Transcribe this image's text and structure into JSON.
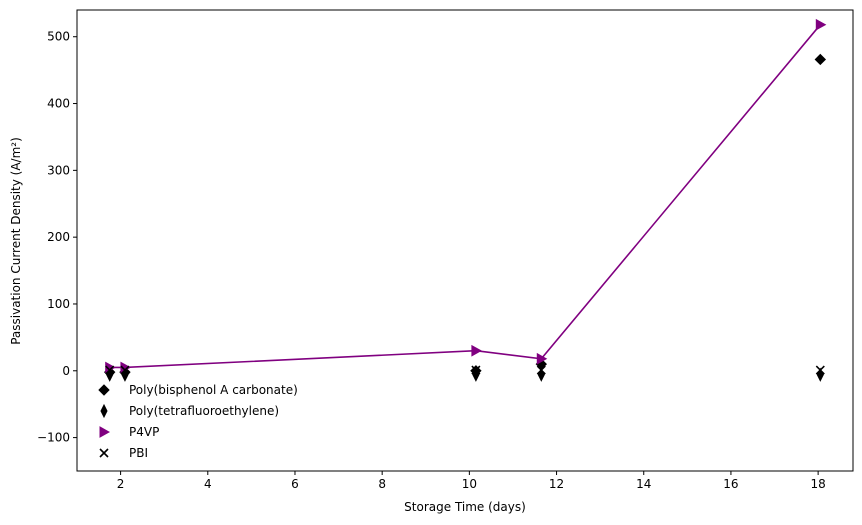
{
  "chart_data": {
    "type": "scatter",
    "xlabel": "Storage Time (days)",
    "ylabel": "Passivation Current Density (A/m²)",
    "xlim": [
      1.0,
      18.8
    ],
    "ylim": [
      -150,
      540
    ],
    "xticks": [
      2,
      4,
      6,
      8,
      10,
      12,
      14,
      16,
      18
    ],
    "yticks": [
      -100,
      0,
      100,
      200,
      300,
      400,
      500
    ],
    "ytick_labels": [
      "−100",
      "0",
      "100",
      "200",
      "300",
      "400",
      "500"
    ],
    "grid": false,
    "legend_position": "lower-left",
    "series": [
      {
        "name": "Poly(bisphenol A carbonate)",
        "marker": "diamond",
        "color": "#000000",
        "line": false,
        "points": [
          [
            1.75,
            -2
          ],
          [
            2.1,
            -2
          ],
          [
            10.15,
            0
          ],
          [
            11.65,
            10
          ],
          [
            18.05,
            466
          ]
        ]
      },
      {
        "name": "Poly(tetrafluoroethylene)",
        "marker": "thin_diamond",
        "color": "#000000",
        "line": false,
        "points": [
          [
            1.75,
            -6
          ],
          [
            2.1,
            -6
          ],
          [
            10.15,
            -6
          ],
          [
            11.65,
            -6
          ],
          [
            18.05,
            -6
          ]
        ]
      },
      {
        "name": "P4VP",
        "marker": "triangle_right",
        "color": "#800080",
        "line": true,
        "points": [
          [
            1.75,
            5
          ],
          [
            2.1,
            5
          ],
          [
            10.15,
            30
          ],
          [
            11.65,
            18
          ],
          [
            18.05,
            518
          ]
        ]
      },
      {
        "name": "PBI",
        "marker": "x",
        "color": "#000000",
        "line": false,
        "points": [
          [
            1.75,
            1
          ],
          [
            2.1,
            1
          ],
          [
            10.15,
            1
          ],
          [
            11.65,
            1
          ],
          [
            18.05,
            1
          ]
        ]
      }
    ]
  }
}
